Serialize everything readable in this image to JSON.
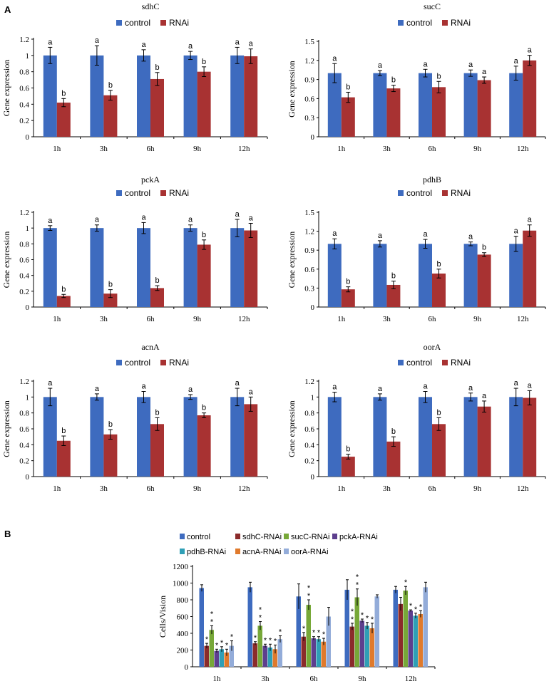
{
  "panel_labels": {
    "a": "A",
    "b": "B"
  },
  "colors": {
    "control": "#3e6bbf",
    "rnai": "#a83232",
    "sdhC-RNAi": "#8b2b2b",
    "sucC-RNAi": "#77a838",
    "pckA-RNAi": "#5d3f8e",
    "pdhB-RNAi": "#2f9fb6",
    "acnA-RNAi": "#e07a2c",
    "oorA-RNAi": "#93acd9"
  },
  "chart_data": [
    {
      "id": "sdhC",
      "type": "bar",
      "title": "sdhC",
      "ylabel": "Gene expression",
      "categories": [
        "1h",
        "3h",
        "6h",
        "9h",
        "12h"
      ],
      "ylim": [
        0,
        1.2
      ],
      "yticks": [
        "0",
        "0.2",
        "0.4",
        "0.6",
        "0.8",
        "1",
        "1.2"
      ],
      "legend": [
        "control",
        "RNAi"
      ],
      "series": [
        {
          "name": "control",
          "values": [
            1,
            1,
            1,
            1,
            1
          ],
          "errors": [
            0.1,
            0.12,
            0.07,
            0.05,
            0.1
          ],
          "labels": [
            "a",
            "a",
            "a",
            "a",
            "a"
          ]
        },
        {
          "name": "RNAi",
          "values": [
            0.42,
            0.51,
            0.71,
            0.8,
            0.99
          ],
          "errors": [
            0.05,
            0.06,
            0.08,
            0.06,
            0.09
          ],
          "labels": [
            "b",
            "b",
            "b",
            "b",
            "a"
          ]
        }
      ]
    },
    {
      "id": "sucC",
      "type": "bar",
      "title": "sucC",
      "ylabel": "Gene expression",
      "categories": [
        "1h",
        "3h",
        "6h",
        "9h",
        "12h"
      ],
      "ylim": [
        0,
        1.5
      ],
      "yticks": [
        "0",
        "0.3",
        "0.6",
        "0.9",
        "1.2",
        "1.5"
      ],
      "legend": [
        "control",
        "RNAi"
      ],
      "series": [
        {
          "name": "control",
          "values": [
            1,
            1,
            1,
            1,
            1
          ],
          "errors": [
            0.15,
            0.04,
            0.06,
            0.05,
            0.11
          ],
          "labels": [
            "a",
            "a",
            "a",
            "a",
            "a"
          ]
        },
        {
          "name": "RNAi",
          "values": [
            0.62,
            0.76,
            0.78,
            0.89,
            1.2
          ],
          "errors": [
            0.08,
            0.05,
            0.09,
            0.05,
            0.08
          ],
          "labels": [
            "b",
            "b",
            "b",
            "a",
            "a"
          ]
        }
      ]
    },
    {
      "id": "pckA",
      "type": "bar",
      "title": "pckA",
      "ylabel": "Gene expression",
      "categories": [
        "1h",
        "3h",
        "6h",
        "9h",
        "12h"
      ],
      "ylim": [
        0,
        1.2
      ],
      "yticks": [
        "0",
        "0.2",
        "0.4",
        "0.6",
        "0.8",
        "1",
        "1.2"
      ],
      "legend": [
        "control",
        "RNAi"
      ],
      "series": [
        {
          "name": "control",
          "values": [
            1,
            1,
            1,
            1,
            1
          ],
          "errors": [
            0.03,
            0.04,
            0.07,
            0.04,
            0.11
          ],
          "labels": [
            "a",
            "a",
            "a",
            "a",
            "a"
          ]
        },
        {
          "name": "RNAi",
          "values": [
            0.14,
            0.17,
            0.24,
            0.79,
            0.97
          ],
          "errors": [
            0.02,
            0.05,
            0.03,
            0.06,
            0.09
          ],
          "labels": [
            "b",
            "b",
            "b",
            "b",
            "a"
          ]
        }
      ]
    },
    {
      "id": "pdhB",
      "type": "bar",
      "title": "pdhB",
      "ylabel": "Gene expression",
      "categories": [
        "1h",
        "3h",
        "6h",
        "9h",
        "12h"
      ],
      "ylim": [
        0,
        1.5
      ],
      "yticks": [
        "0",
        "0.3",
        "0.6",
        "0.9",
        "1.2",
        "1.5"
      ],
      "legend": [
        "control",
        "RNAi"
      ],
      "series": [
        {
          "name": "control",
          "values": [
            1,
            1,
            1,
            1,
            1
          ],
          "errors": [
            0.08,
            0.05,
            0.07,
            0.03,
            0.12
          ],
          "labels": [
            "a",
            "a",
            "a",
            "a",
            "a"
          ]
        },
        {
          "name": "RNAi",
          "values": [
            0.28,
            0.35,
            0.53,
            0.83,
            1.21
          ],
          "errors": [
            0.04,
            0.06,
            0.07,
            0.03,
            0.09
          ],
          "labels": [
            "b",
            "b",
            "b",
            "b",
            "a"
          ]
        }
      ]
    },
    {
      "id": "acnA",
      "type": "bar",
      "title": "acnA",
      "ylabel": "Gene expression",
      "categories": [
        "1h",
        "3h",
        "6h",
        "9h",
        "12h"
      ],
      "ylim": [
        0,
        1.2
      ],
      "yticks": [
        "0",
        "0.2",
        "0.4",
        "0.6",
        "0.8",
        "1",
        "1.2"
      ],
      "legend": [
        "control",
        "RNAi"
      ],
      "series": [
        {
          "name": "control",
          "values": [
            1,
            1,
            1,
            1,
            1
          ],
          "errors": [
            0.11,
            0.04,
            0.07,
            0.03,
            0.11
          ],
          "labels": [
            "a",
            "a",
            "a",
            "a",
            "a"
          ]
        },
        {
          "name": "RNAi",
          "values": [
            0.45,
            0.53,
            0.66,
            0.77,
            0.91
          ],
          "errors": [
            0.06,
            0.06,
            0.08,
            0.03,
            0.09
          ],
          "labels": [
            "b",
            "b",
            "b",
            "b",
            "a"
          ]
        }
      ]
    },
    {
      "id": "oorA",
      "type": "bar",
      "title": "oorA",
      "ylabel": "Gene expression",
      "categories": [
        "1h",
        "3h",
        "6h",
        "9h",
        "12h"
      ],
      "ylim": [
        0,
        1.2
      ],
      "yticks": [
        "0",
        "0.2",
        "0.4",
        "0.6",
        "0.8",
        "1",
        "1.2"
      ],
      "legend": [
        "control",
        "RNAi"
      ],
      "series": [
        {
          "name": "control",
          "values": [
            1,
            1,
            1,
            1,
            1
          ],
          "errors": [
            0.06,
            0.04,
            0.07,
            0.05,
            0.11
          ],
          "labels": [
            "a",
            "a",
            "a",
            "a",
            "a"
          ]
        },
        {
          "name": "RNAi",
          "values": [
            0.25,
            0.44,
            0.66,
            0.88,
            0.99
          ],
          "errors": [
            0.03,
            0.06,
            0.08,
            0.07,
            0.09
          ],
          "labels": [
            "b",
            "b",
            "b",
            "a",
            "a"
          ]
        }
      ]
    },
    {
      "id": "cells",
      "type": "bar",
      "title": "",
      "ylabel": "Cells/Vision",
      "categories": [
        "1h",
        "3h",
        "6h",
        "9h",
        "12h"
      ],
      "ylim": [
        0,
        1200
      ],
      "yticks": [
        "0",
        "200",
        "400",
        "600",
        "800",
        "1000",
        "1200"
      ],
      "legend": [
        "control",
        "sdhC-RNAi",
        "sucC-RNAi",
        "pckA-RNAi",
        "pdhB-RNAi",
        "acnA-RNAi",
        "oorA-RNAi"
      ],
      "series": [
        {
          "name": "control",
          "values": [
            940,
            950,
            840,
            920,
            920
          ],
          "errors": [
            40,
            60,
            150,
            120,
            40
          ],
          "stars": [
            "",
            "",
            "",
            "",
            ""
          ]
        },
        {
          "name": "sdhC-RNAi",
          "values": [
            250,
            280,
            360,
            480,
            750
          ],
          "errors": [
            30,
            20,
            50,
            40,
            80
          ],
          "stars": [
            "*",
            "*",
            "*",
            "**",
            ""
          ]
        },
        {
          "name": "sucC-RNAi",
          "values": [
            440,
            490,
            740,
            830,
            910
          ],
          "errors": [
            50,
            50,
            60,
            100,
            50
          ],
          "stars": [
            "**",
            "**",
            "**",
            "**",
            "*"
          ]
        },
        {
          "name": "pckA-RNAi",
          "values": [
            190,
            250,
            340,
            550,
            670
          ],
          "errors": [
            20,
            20,
            20,
            20,
            10
          ],
          "stars": [
            "*",
            "*",
            "*",
            "*",
            "*"
          ]
        },
        {
          "name": "pdhB-RNAi",
          "values": [
            210,
            230,
            330,
            490,
            610
          ],
          "errors": [
            30,
            40,
            30,
            40,
            30
          ],
          "stars": [
            "*",
            "*",
            "*",
            "*",
            "*"
          ]
        },
        {
          "name": "acnA-RNAi",
          "values": [
            170,
            210,
            300,
            460,
            630
          ],
          "errors": [
            40,
            50,
            40,
            60,
            40
          ],
          "stars": [
            "*",
            "*",
            "*",
            "*",
            "*"
          ]
        },
        {
          "name": "oorA-RNAi",
          "values": [
            250,
            330,
            600,
            840,
            950
          ],
          "errors": [
            60,
            40,
            110,
            20,
            60
          ],
          "stars": [
            "*",
            "*",
            "",
            "",
            ""
          ]
        }
      ]
    }
  ]
}
